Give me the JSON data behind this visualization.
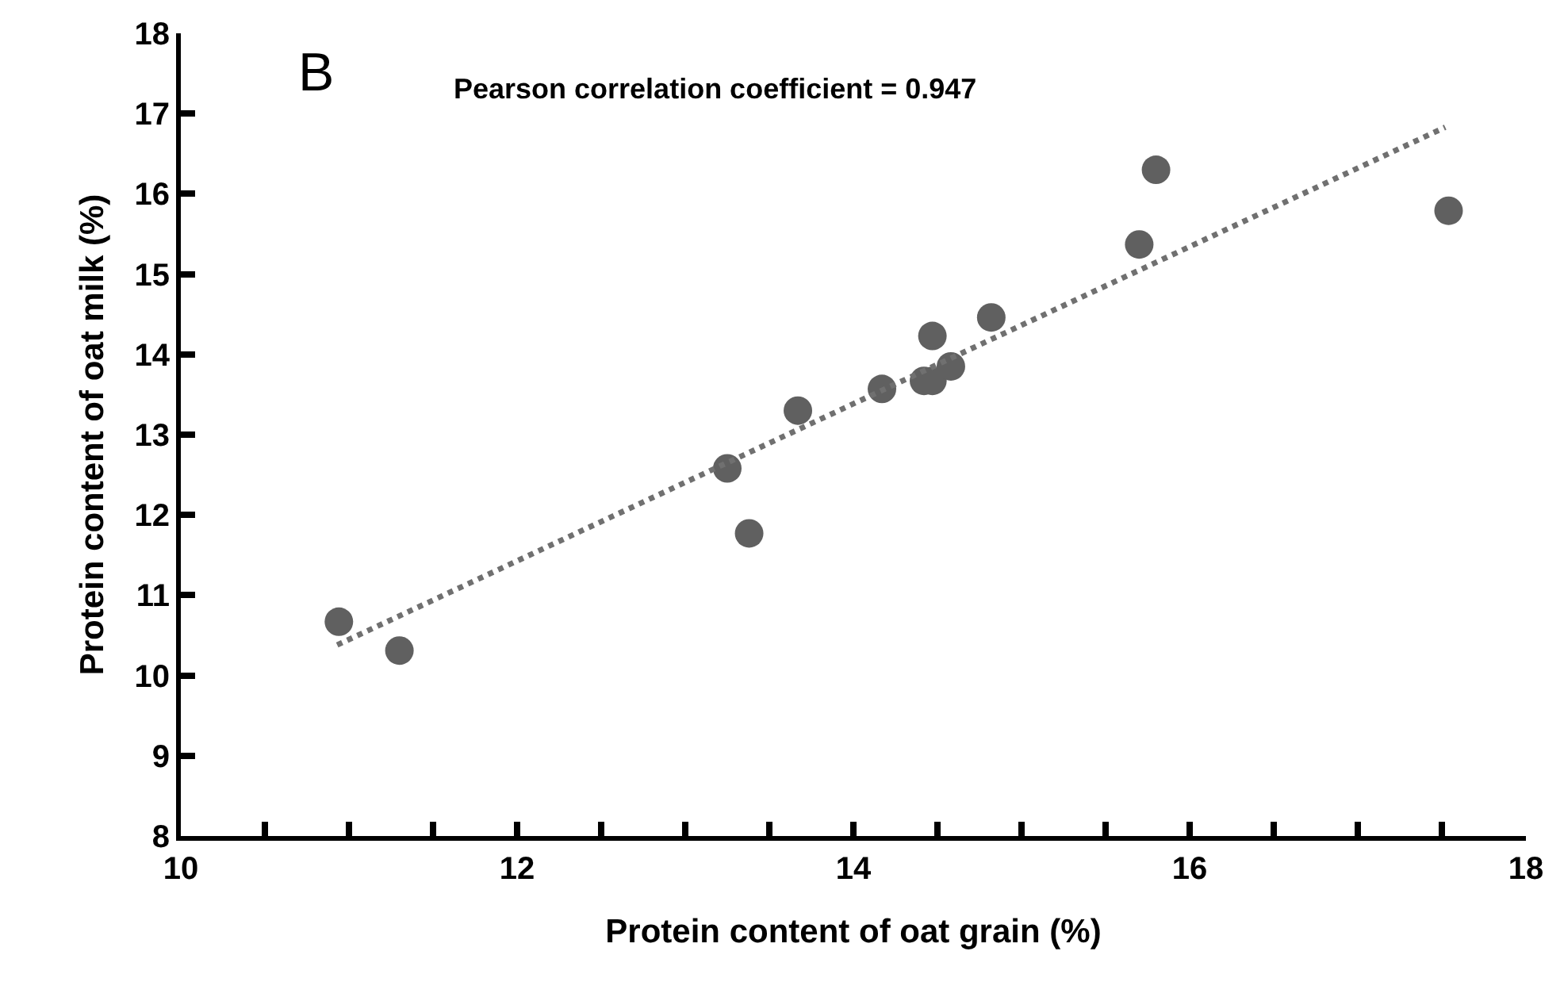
{
  "chart_data": {
    "type": "scatter",
    "xlabel": "Protein content of oat grain (%)",
    "ylabel": "Protein content of oat milk (%)",
    "annotations": [
      "B",
      "Pearson correlation coefficient = 0.947"
    ],
    "xlim": [
      10,
      18
    ],
    "xticks": [
      10,
      {
        "value": 10.5,
        "label": null
      },
      {
        "value": 11,
        "label": null
      },
      {
        "value": 11.5,
        "label": null
      },
      12,
      {
        "value": 12.5,
        "label": null
      },
      {
        "value": 13,
        "label": null
      },
      {
        "value": 13.5,
        "label": null
      },
      14,
      {
        "value": 14.5,
        "label": null
      },
      {
        "value": 15,
        "label": null
      },
      {
        "value": 15.5,
        "label": null
      },
      16,
      {
        "value": 16.5,
        "label": null
      },
      {
        "value": 17,
        "label": null
      },
      {
        "value": 17.5,
        "label": null
      },
      18
    ],
    "ylim": [
      8,
      18
    ],
    "yticks": [
      8,
      9,
      10,
      11,
      12,
      13,
      14,
      15,
      16,
      17,
      18
    ],
    "series": [
      {
        "color": "#606060",
        "marker": "circle",
        "x": [
          10.94,
          11.3,
          13.25,
          13.38,
          13.67,
          14.17,
          14.42,
          14.47,
          14.58,
          14.47,
          14.82,
          15.7,
          15.8,
          17.54
        ],
        "values": [
          10.67,
          10.31,
          12.58,
          11.77,
          13.3,
          13.57,
          13.67,
          13.67,
          13.85,
          14.23,
          14.46,
          15.37,
          16.3,
          15.79
        ]
      },
      {
        "type": "line",
        "color": "#707070",
        "marker": "none",
        "line_style": "dotted",
        "x": [
          10.93,
          17.52
        ],
        "values": [
          10.38,
          16.83
        ]
      }
    ]
  }
}
